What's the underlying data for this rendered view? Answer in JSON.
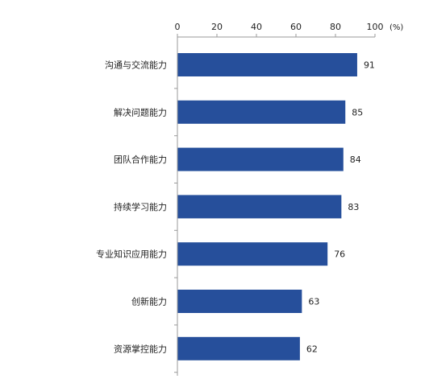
{
  "chart_data": {
    "type": "bar",
    "orientation": "horizontal",
    "title": "",
    "xlabel": "",
    "ylabel": "",
    "unit_label": "(%)",
    "xlim": [
      0,
      100
    ],
    "x_ticks": [
      0,
      20,
      40,
      60,
      80,
      100
    ],
    "x_axis_position": "top",
    "grid": false,
    "legend": "none",
    "bar_color": "#264f9b",
    "categories": [
      "沟通与交流能力",
      "解决问题能力",
      "团队合作能力",
      "持续学习能力",
      "专业知识应用能力",
      "创新能力",
      "资源掌控能力"
    ],
    "values": [
      91,
      85,
      84,
      83,
      76,
      63,
      62
    ]
  }
}
